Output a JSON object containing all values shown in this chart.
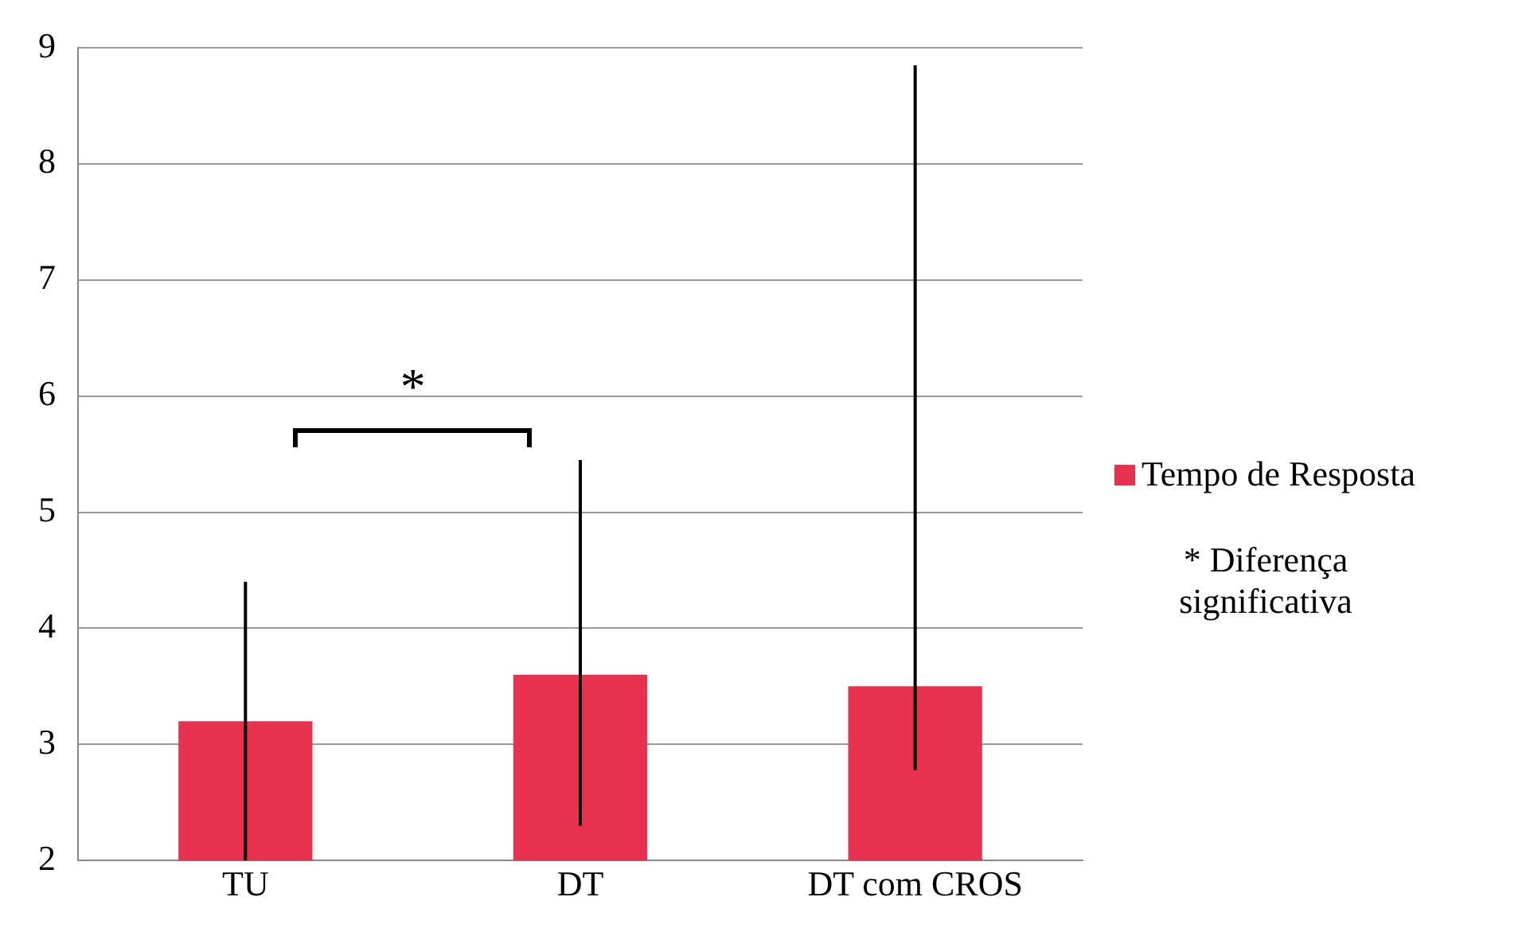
{
  "chart_data": {
    "type": "bar",
    "categories": [
      "TU",
      "DT",
      "DT com CROS"
    ],
    "series": [
      {
        "name": "Tempo de Resposta",
        "color": "#e8304f",
        "values": [
          3.2,
          3.6,
          3.5
        ],
        "errors": [
          [
            2.0,
            4.4
          ],
          [
            2.3,
            5.45
          ],
          [
            2.78,
            8.85
          ]
        ]
      }
    ],
    "ylim": [
      2,
      9
    ],
    "yticks": [
      2,
      3,
      4,
      5,
      6,
      7,
      8,
      9
    ],
    "grid": "y",
    "legend": "right",
    "annotations": [
      "*",
      "* Diferença significativa"
    ]
  }
}
